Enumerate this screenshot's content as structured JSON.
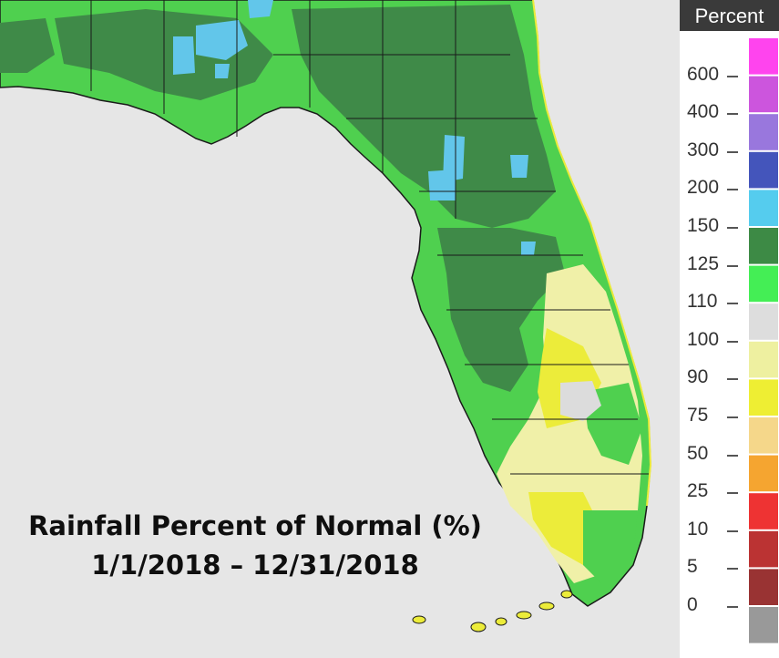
{
  "title": {
    "line1": "Rainfall Percent of Normal (%)",
    "line2": "1/1/2018 – 12/31/2018"
  },
  "legend": {
    "header": "Percent",
    "labels": [
      "600",
      "400",
      "300",
      "200",
      "150",
      "125",
      "110",
      "100",
      "90",
      "75",
      "50",
      "25",
      "10",
      "5",
      "0"
    ],
    "colors": [
      "#ff44ee",
      "#cc55dd",
      "#9977dd",
      "#4455bb",
      "#55ccee",
      "#3d8a45",
      "#44ee55",
      "#dddddd",
      "#eef0a0",
      "#eeee33",
      "#f5d78a",
      "#f5a530",
      "#ee3333",
      "#bb3333",
      "#993333",
      "#999999"
    ]
  },
  "map_colors": {
    "water": "#e6e6e6",
    "land_green": "#4fd04f",
    "dark_green": "#3f8a48",
    "light_blue": "#62c6ea",
    "pale_yellow": "#f0f0a8",
    "yellow": "#ecec3a",
    "light_gray": "#dcdcdc",
    "county_line": "#1a1a1a"
  }
}
